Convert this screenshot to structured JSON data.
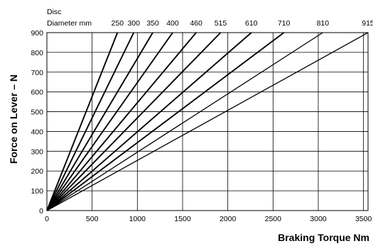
{
  "chart_data": {
    "type": "line",
    "title": "",
    "xlabel": "Braking Torque Nm",
    "ylabel": "Force on Lever – N",
    "top_axis_header": [
      "Disc",
      "Diameter mm"
    ],
    "xlim": [
      0,
      3550
    ],
    "ylim": [
      0,
      900
    ],
    "x_ticks": [
      "0",
      "500",
      "1000",
      "1500",
      "2000",
      "2500",
      "3000",
      "3500"
    ],
    "y_ticks": [
      "0",
      "100",
      "200",
      "300",
      "400",
      "500",
      "600",
      "700",
      "800",
      "900"
    ],
    "grid": true,
    "legend": "none",
    "series": [
      {
        "name": "250",
        "x": [
          0,
          780
        ],
        "y": [
          0,
          900
        ]
      },
      {
        "name": "300",
        "x": [
          0,
          960
        ],
        "y": [
          0,
          900
        ]
      },
      {
        "name": "350",
        "x": [
          0,
          1170
        ],
        "y": [
          0,
          900
        ]
      },
      {
        "name": "400",
        "x": [
          0,
          1390
        ],
        "y": [
          0,
          900
        ]
      },
      {
        "name": "460",
        "x": [
          0,
          1650
        ],
        "y": [
          0,
          900
        ]
      },
      {
        "name": "515",
        "x": [
          0,
          1920
        ],
        "y": [
          0,
          900
        ]
      },
      {
        "name": "610",
        "x": [
          0,
          2260
        ],
        "y": [
          0,
          900
        ]
      },
      {
        "name": "710",
        "x": [
          0,
          2620
        ],
        "y": [
          0,
          900
        ]
      },
      {
        "name": "810",
        "x": [
          0,
          3050
        ],
        "y": [
          0,
          900
        ]
      },
      {
        "name": "915",
        "x": [
          0,
          3550
        ],
        "y": [
          0,
          900
        ]
      }
    ]
  }
}
